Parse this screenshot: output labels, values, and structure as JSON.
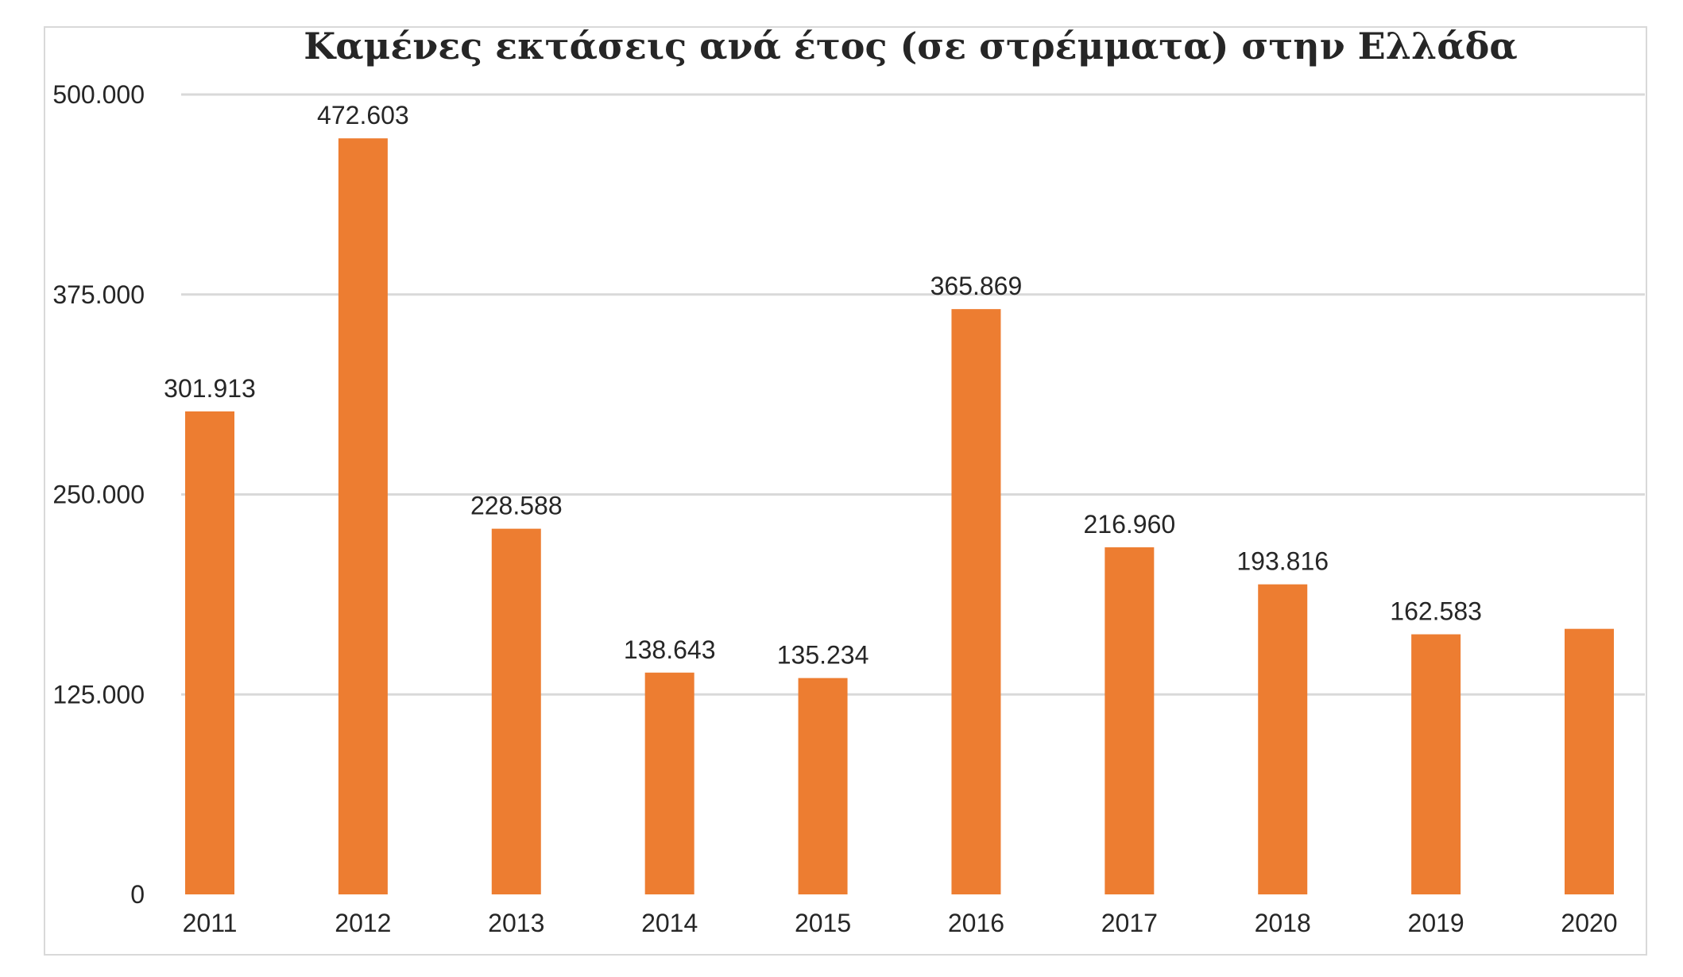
{
  "chart_data": {
    "type": "bar",
    "title": "Καμένες εκτάσεις ανά έτος (σε στρέμματα) στην Ελλάδα",
    "xlabel": "",
    "ylabel": "",
    "categories": [
      "2011",
      "2012",
      "2013",
      "2014",
      "2015",
      "2016",
      "2017",
      "2018",
      "2019",
      "2020"
    ],
    "values": [
      301913,
      472603,
      228588,
      138643,
      135234,
      365869,
      216960,
      193816,
      162583,
      166000
    ],
    "data_labels": [
      "301.913",
      "472.603",
      "228.588",
      "138.643",
      "135.234",
      "365.869",
      "216.960",
      "193.816",
      "162.583",
      ""
    ],
    "ylim": [
      0,
      500000
    ],
    "yticks": [
      0,
      125000,
      250000,
      375000,
      500000
    ],
    "ytick_labels": [
      "0",
      "125.000",
      "250.000",
      "375.000",
      "500.000"
    ],
    "grid": true,
    "legend": "none",
    "bar_color": "#ED7D31",
    "grid_color": "#D9D9D9"
  }
}
